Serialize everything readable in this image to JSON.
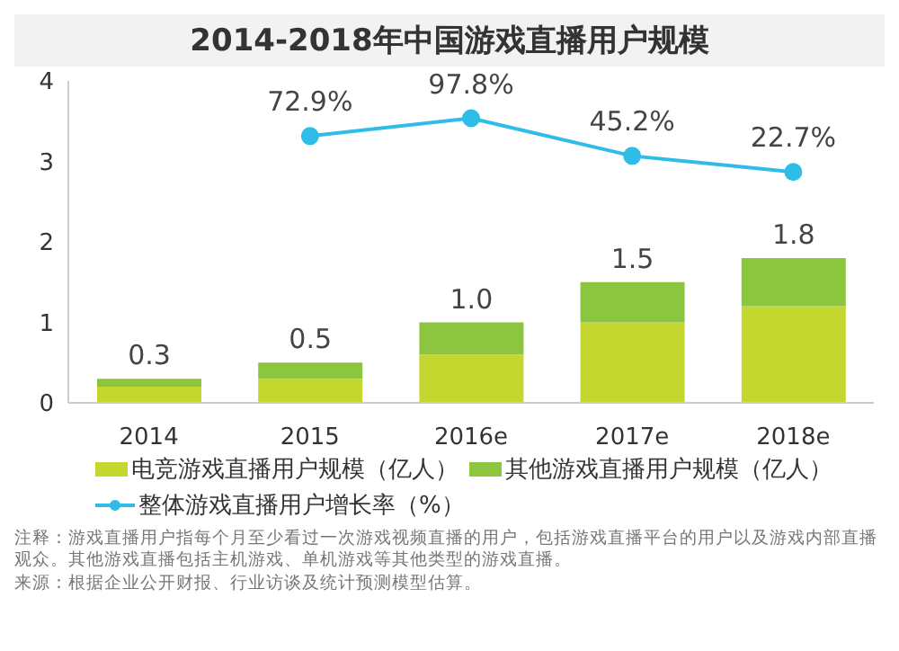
{
  "chart_data": {
    "type": "bar",
    "title": "2014-2018年中国游戏直播用户规模",
    "categories": [
      "2014",
      "2015",
      "2016e",
      "2017e",
      "2018e"
    ],
    "stacked": true,
    "series": [
      {
        "name": "电竞游戏直播用户规模（亿人）",
        "color": "#c3d72f",
        "values": [
          0.2,
          0.3,
          0.6,
          1.0,
          1.2
        ]
      },
      {
        "name": "其他游戏直播用户规模（亿人）",
        "color": "#8cc63f",
        "values": [
          0.1,
          0.2,
          0.4,
          0.5,
          0.6
        ]
      },
      {
        "name": "整体游戏直播用户增长率（%）",
        "type": "line",
        "axis": "y2",
        "color": "#2fbde8",
        "values": [
          null,
          72.9,
          97.8,
          45.2,
          22.7
        ],
        "value_labels": [
          null,
          "72.9%",
          "97.8%",
          "45.2%",
          "22.7%"
        ]
      }
    ],
    "totals": [
      "0.3",
      "0.5",
      "1.0",
      "1.5",
      "1.8"
    ],
    "ylim": [
      0,
      4
    ],
    "yticks": [
      0,
      1,
      2,
      3,
      4
    ],
    "y2lim": [
      -300,
      150
    ],
    "marker": "circle",
    "grid": false,
    "legend": "bottom",
    "annotations": [
      "注释：游戏直播用户指每个月至少看过一次游戏视频直播的用户，包括游戏直播平台的用户以及游戏内部直播观众。其他游戏直播包括主机游戏、单机游戏等其他类型的游戏直播。",
      "来源：根据企业公开财报、行业访谈及统计预测模型估算。"
    ]
  }
}
